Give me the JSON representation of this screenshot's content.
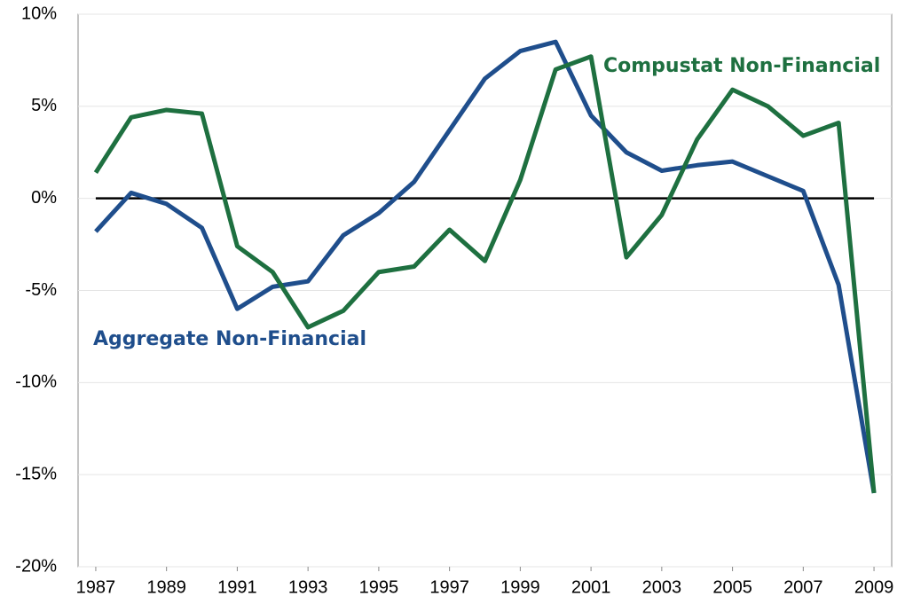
{
  "chart_data": {
    "type": "line",
    "x": [
      1987,
      1988,
      1989,
      1990,
      1991,
      1992,
      1993,
      1994,
      1995,
      1996,
      1997,
      1998,
      1999,
      2000,
      2001,
      2002,
      2003,
      2004,
      2005,
      2006,
      2007,
      2008,
      2009
    ],
    "series": [
      {
        "name": "Aggregate Non-Financial",
        "color": "#1f4e8c",
        "values": [
          -1.8,
          0.3,
          -0.3,
          -1.6,
          -6.0,
          -4.8,
          -4.5,
          -2.0,
          -0.8,
          0.9,
          3.7,
          6.5,
          8.0,
          8.5,
          4.5,
          2.5,
          1.5,
          1.8,
          2.0,
          1.2,
          0.4,
          -4.7,
          -16.0
        ]
      },
      {
        "name": "Compustat Non-Financial",
        "color": "#1e7040",
        "values": [
          1.4,
          4.4,
          4.8,
          4.6,
          -2.6,
          -4.0,
          -7.0,
          -6.1,
          -4.0,
          -3.7,
          -1.7,
          -3.4,
          1.0,
          7.0,
          7.7,
          -3.2,
          -0.9,
          3.2,
          5.9,
          5.0,
          3.4,
          4.1,
          -16.0
        ]
      }
    ],
    "xlim": [
      1986.5,
      2009.5
    ],
    "xticks": [
      1987,
      1989,
      1991,
      1993,
      1995,
      1997,
      1999,
      2001,
      2003,
      2005,
      2007,
      2009
    ],
    "ylim": [
      -20,
      10
    ],
    "yticks": [
      {
        "value": -20,
        "label": "-20%"
      },
      {
        "value": -15,
        "label": "-15%"
      },
      {
        "value": -10,
        "label": "-10%"
      },
      {
        "value": -5,
        "label": "-5%"
      },
      {
        "value": 0,
        "label": "0%"
      },
      {
        "value": 5,
        "label": "5%"
      },
      {
        "value": 10,
        "label": "10%"
      }
    ],
    "grid": true
  }
}
